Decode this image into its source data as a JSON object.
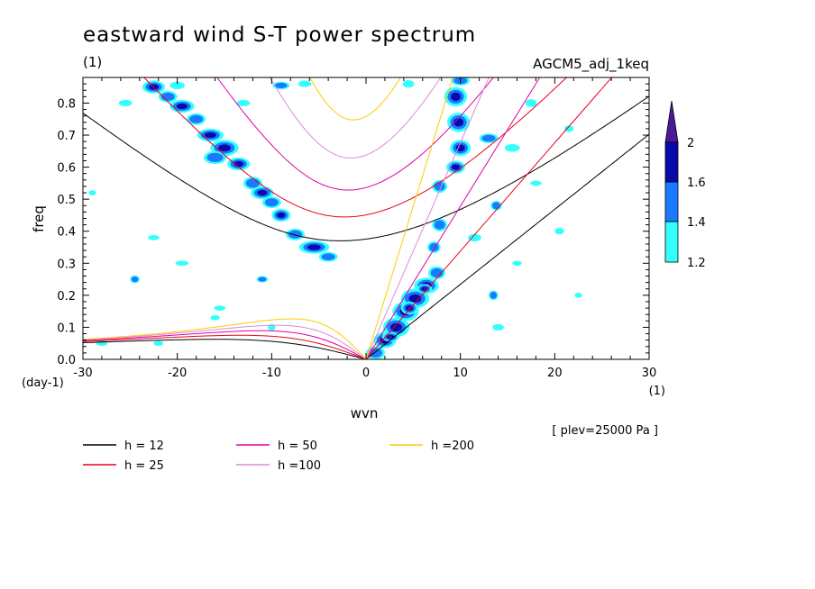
{
  "chart_data": {
    "type": "heatmap",
    "title": "eastward wind S-T power spectrum",
    "subtitle_left": "(1)",
    "subtitle_right": "AGCM5_adj_1keq",
    "xlabel": "wvn",
    "ylabel": "freq",
    "x_unit": "(1)",
    "y_unit": "(day-1)",
    "xlim": [
      -30,
      30
    ],
    "ylim": [
      0,
      0.88
    ],
    "x_ticks": [
      -30,
      -20,
      -10,
      0,
      10,
      20,
      30
    ],
    "x_tick_labels": [
      "-30",
      "-20",
      "-10",
      "0",
      "10",
      "20",
      "30"
    ],
    "y_ticks": [
      0,
      0.1,
      0.2,
      0.3,
      0.4,
      0.5,
      0.6,
      0.7,
      0.8
    ],
    "y_tick_labels": [
      "0.0",
      "0.1",
      "0.2",
      "0.3",
      "0.4",
      "0.5",
      "0.6",
      "0.7",
      "0.8"
    ],
    "note": "[ plev=25000 Pa ]",
    "colorbar": {
      "levels": [
        1.2,
        1.4,
        1.6,
        2
      ],
      "labels": [
        "1.2",
        "1.4",
        "1.6",
        "2"
      ],
      "colors": [
        "#33ffff",
        "#1a7aff",
        "#0a0aaa",
        "#4a1a99"
      ]
    },
    "dispersion_curves": [
      {
        "name": "h = 12",
        "h": 12,
        "color": "#000000"
      },
      {
        "name": "h = 25",
        "h": 25,
        "color": "#e8001c"
      },
      {
        "name": "h = 50",
        "h": 50,
        "color": "#e000a0"
      },
      {
        "name": "h =100",
        "h": 100,
        "color": "#dd88dd"
      },
      {
        "name": "h =200",
        "h": 200,
        "color": "#ffcc00"
      }
    ],
    "blobs": [
      {
        "x": -22.5,
        "y": 0.85,
        "level": 3,
        "rx": 1.2,
        "ry": 0.02
      },
      {
        "x": -21.0,
        "y": 0.82,
        "level": 2,
        "rx": 1.0,
        "ry": 0.018
      },
      {
        "x": -19.5,
        "y": 0.79,
        "level": 3,
        "rx": 1.3,
        "ry": 0.02
      },
      {
        "x": -18.0,
        "y": 0.75,
        "level": 2,
        "rx": 1.0,
        "ry": 0.018
      },
      {
        "x": -16.5,
        "y": 0.7,
        "level": 3,
        "rx": 1.4,
        "ry": 0.02
      },
      {
        "x": -15.0,
        "y": 0.66,
        "level": 3,
        "rx": 1.5,
        "ry": 0.025
      },
      {
        "x": -16.0,
        "y": 0.63,
        "level": 2,
        "rx": 1.2,
        "ry": 0.02
      },
      {
        "x": -13.5,
        "y": 0.61,
        "level": 3,
        "rx": 1.2,
        "ry": 0.02
      },
      {
        "x": -12.0,
        "y": 0.55,
        "level": 2,
        "rx": 1.0,
        "ry": 0.02
      },
      {
        "x": -11.0,
        "y": 0.52,
        "level": 3,
        "rx": 1.2,
        "ry": 0.02
      },
      {
        "x": -10.0,
        "y": 0.49,
        "level": 2,
        "rx": 1.0,
        "ry": 0.018
      },
      {
        "x": -9.0,
        "y": 0.45,
        "level": 3,
        "rx": 1.0,
        "ry": 0.02
      },
      {
        "x": -7.5,
        "y": 0.39,
        "level": 2,
        "rx": 1.0,
        "ry": 0.018
      },
      {
        "x": -5.5,
        "y": 0.35,
        "level": 3,
        "rx": 1.6,
        "ry": 0.02
      },
      {
        "x": -4.0,
        "y": 0.32,
        "level": 2,
        "rx": 1.0,
        "ry": 0.015
      },
      {
        "x": -20.0,
        "y": 0.855,
        "level": 1,
        "rx": 0.8,
        "ry": 0.012
      },
      {
        "x": -25.5,
        "y": 0.8,
        "level": 1,
        "rx": 0.7,
        "ry": 0.01
      },
      {
        "x": -13.0,
        "y": 0.8,
        "level": 1,
        "rx": 0.7,
        "ry": 0.01
      },
      {
        "x": -9.0,
        "y": 0.855,
        "level": 2,
        "rx": 0.9,
        "ry": 0.012
      },
      {
        "x": -6.5,
        "y": 0.86,
        "level": 1,
        "rx": 0.7,
        "ry": 0.01
      },
      {
        "x": -24.5,
        "y": 0.25,
        "level": 2,
        "rx": 0.5,
        "ry": 0.012
      },
      {
        "x": -11.0,
        "y": 0.25,
        "level": 2,
        "rx": 0.6,
        "ry": 0.01
      },
      {
        "x": -19.5,
        "y": 0.3,
        "level": 1,
        "rx": 0.7,
        "ry": 0.008
      },
      {
        "x": -22.5,
        "y": 0.38,
        "level": 1,
        "rx": 0.6,
        "ry": 0.008
      },
      {
        "x": -29.0,
        "y": 0.52,
        "level": 1,
        "rx": 0.4,
        "ry": 0.008
      },
      {
        "x": -15.5,
        "y": 0.16,
        "level": 1,
        "rx": 0.6,
        "ry": 0.008
      },
      {
        "x": -16.0,
        "y": 0.13,
        "level": 1,
        "rx": 0.5,
        "ry": 0.008
      },
      {
        "x": -10.0,
        "y": 0.1,
        "level": 1,
        "rx": 0.4,
        "ry": 0.01
      },
      {
        "x": -28.0,
        "y": 0.05,
        "level": 1,
        "rx": 0.6,
        "ry": 0.008
      },
      {
        "x": -22.0,
        "y": 0.05,
        "level": 1,
        "rx": 0.5,
        "ry": 0.008
      },
      {
        "x": 1.0,
        "y": 0.02,
        "level": 2,
        "rx": 1.0,
        "ry": 0.02
      },
      {
        "x": 2.0,
        "y": 0.06,
        "level": 3,
        "rx": 1.2,
        "ry": 0.025
      },
      {
        "x": 3.2,
        "y": 0.1,
        "level": 3,
        "rx": 1.4,
        "ry": 0.03
      },
      {
        "x": 4.2,
        "y": 0.15,
        "level": 3,
        "rx": 1.4,
        "ry": 0.03
      },
      {
        "x": 5.2,
        "y": 0.19,
        "level": 3,
        "rx": 1.5,
        "ry": 0.03
      },
      {
        "x": 6.4,
        "y": 0.23,
        "level": 3,
        "rx": 1.3,
        "ry": 0.025
      },
      {
        "x": 7.5,
        "y": 0.27,
        "level": 2,
        "rx": 0.9,
        "ry": 0.02
      },
      {
        "x": 2.6,
        "y": 0.07,
        "level": 4,
        "rx": 0.9,
        "ry": 0.015
      },
      {
        "x": 4.6,
        "y": 0.16,
        "level": 4,
        "rx": 0.9,
        "ry": 0.02
      },
      {
        "x": 6.2,
        "y": 0.22,
        "level": 4,
        "rx": 0.8,
        "ry": 0.015
      },
      {
        "x": 9.5,
        "y": 0.82,
        "level": 3,
        "rx": 1.2,
        "ry": 0.03
      },
      {
        "x": 9.8,
        "y": 0.74,
        "level": 3,
        "rx": 1.2,
        "ry": 0.03
      },
      {
        "x": 10.0,
        "y": 0.66,
        "level": 3,
        "rx": 1.1,
        "ry": 0.025
      },
      {
        "x": 9.5,
        "y": 0.6,
        "level": 3,
        "rx": 1.0,
        "ry": 0.02
      },
      {
        "x": 10.0,
        "y": 0.87,
        "level": 2,
        "rx": 1.0,
        "ry": 0.015
      },
      {
        "x": 7.8,
        "y": 0.54,
        "level": 2,
        "rx": 0.8,
        "ry": 0.02
      },
      {
        "x": 7.8,
        "y": 0.42,
        "level": 2,
        "rx": 0.8,
        "ry": 0.02
      },
      {
        "x": 7.2,
        "y": 0.35,
        "level": 2,
        "rx": 0.7,
        "ry": 0.018
      },
      {
        "x": 13.0,
        "y": 0.69,
        "level": 2,
        "rx": 1.0,
        "ry": 0.015
      },
      {
        "x": 15.5,
        "y": 0.66,
        "level": 1,
        "rx": 0.8,
        "ry": 0.012
      },
      {
        "x": 13.8,
        "y": 0.48,
        "level": 2,
        "rx": 0.6,
        "ry": 0.015
      },
      {
        "x": 11.5,
        "y": 0.38,
        "level": 1,
        "rx": 0.7,
        "ry": 0.012
      },
      {
        "x": 13.5,
        "y": 0.2,
        "level": 2,
        "rx": 0.5,
        "ry": 0.015
      },
      {
        "x": 14.0,
        "y": 0.1,
        "level": 1,
        "rx": 0.6,
        "ry": 0.01
      },
      {
        "x": 18.0,
        "y": 0.55,
        "level": 1,
        "rx": 0.6,
        "ry": 0.008
      },
      {
        "x": 20.5,
        "y": 0.4,
        "level": 1,
        "rx": 0.5,
        "ry": 0.01
      },
      {
        "x": 17.5,
        "y": 0.8,
        "level": 1,
        "rx": 0.6,
        "ry": 0.012
      },
      {
        "x": 21.5,
        "y": 0.72,
        "level": 1,
        "rx": 0.5,
        "ry": 0.01
      },
      {
        "x": 4.5,
        "y": 0.86,
        "level": 1,
        "rx": 0.6,
        "ry": 0.012
      },
      {
        "x": 16.0,
        "y": 0.3,
        "level": 1,
        "rx": 0.5,
        "ry": 0.008
      },
      {
        "x": 22.5,
        "y": 0.2,
        "level": 1,
        "rx": 0.4,
        "ry": 0.008
      }
    ]
  },
  "legend": [
    {
      "label": "h = 12",
      "color": "#000000"
    },
    {
      "label": "h = 25",
      "color": "#e8001c"
    },
    {
      "label": "h = 50",
      "color": "#e000a0"
    },
    {
      "label": "h =100",
      "color": "#dd88dd"
    },
    {
      "label": "h =200",
      "color": "#ffcc00"
    }
  ]
}
